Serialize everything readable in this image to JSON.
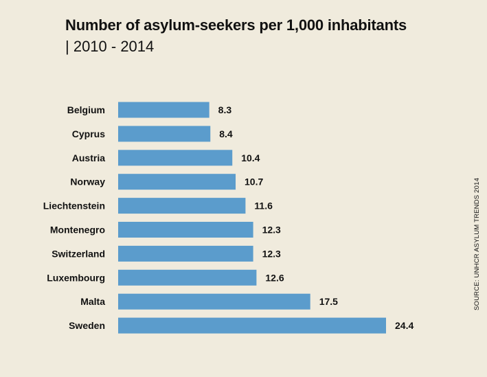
{
  "chart_data": {
    "type": "bar",
    "orientation": "horizontal",
    "title": "Number of asylum-seekers per 1,000 inhabitants",
    "subtitle": "| 2010 - 2014",
    "categories": [
      "Belgium",
      "Cyprus",
      "Austria",
      "Norway",
      "Liechtenstein",
      "Montenegro",
      "Switzerland",
      "Luxembourg",
      "Malta",
      "Sweden"
    ],
    "values": [
      8.3,
      8.4,
      10.4,
      10.7,
      11.6,
      12.3,
      12.3,
      12.6,
      17.5,
      24.4
    ],
    "value_labels": [
      "8.3",
      "8.4",
      "10.4",
      "10.7",
      "11.6",
      "12.3",
      "12.3",
      "12.6",
      "17.5",
      "24.4"
    ],
    "xlim": [
      0,
      24.4
    ],
    "bar_color": "#5b9ccc",
    "background_color": "#f0ebdd",
    "grid": false,
    "source": "SOURCE: UNHCR ASYLUM TRENDS 2014"
  }
}
